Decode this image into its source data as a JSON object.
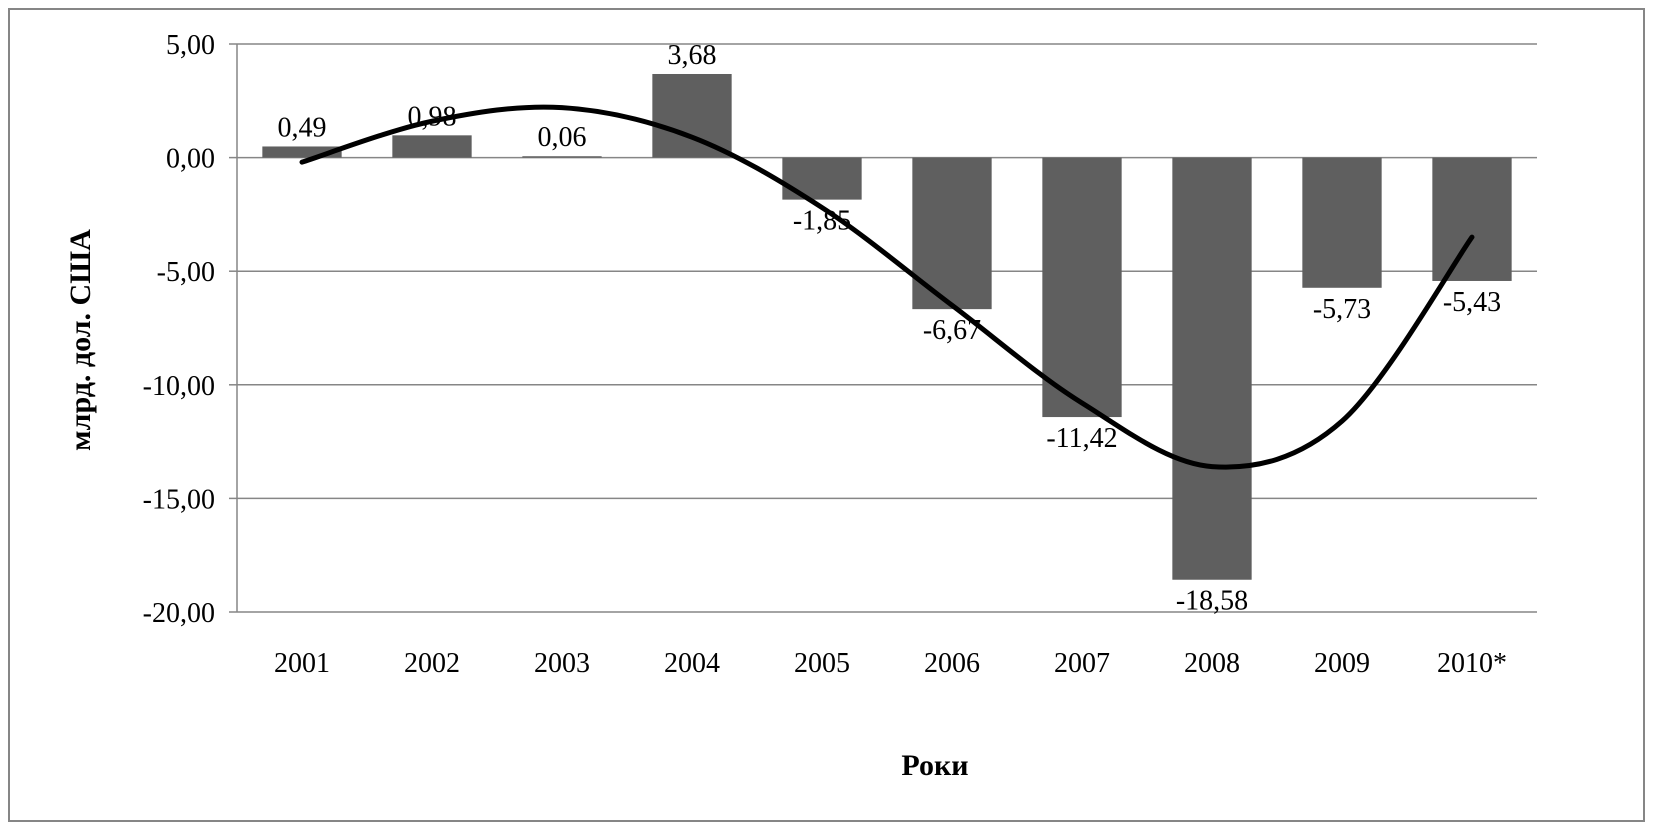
{
  "chart_data": {
    "type": "bar",
    "title": "",
    "xlabel": "Роки",
    "ylabel": "млрд. дол. США",
    "categories": [
      "2001",
      "2002",
      "2003",
      "2004",
      "2005",
      "2006",
      "2007",
      "2008",
      "2009",
      "2010*"
    ],
    "values": [
      0.49,
      0.98,
      0.06,
      3.68,
      -1.85,
      -6.67,
      -11.42,
      -18.58,
      -5.73,
      -5.43
    ],
    "value_labels": [
      "0,49",
      "0,98",
      "0,06",
      "3,68",
      "-1,85",
      "-6,67",
      "-11,42",
      "-18,58",
      "-5,73",
      "-5,43"
    ],
    "ylim": [
      -20,
      5
    ],
    "yticks": [
      5,
      0,
      -5,
      -10,
      -15,
      -20
    ],
    "ytick_labels": [
      "5,00",
      "0,00",
      "-5,00",
      "-10,00",
      "-15,00",
      "-20,00"
    ],
    "grid": true,
    "legend": "none",
    "bar_color": "#5f5f5f",
    "trendline": {
      "type": "polynomial",
      "color": "#000000",
      "x": [
        "2001",
        "2002",
        "2003",
        "2004",
        "2005",
        "2006",
        "2007",
        "2008",
        "2009",
        "2010*"
      ],
      "y": [
        -0.2,
        1.6,
        2.2,
        0.9,
        -2.2,
        -6.5,
        -10.8,
        -13.6,
        -11.6,
        -3.5
      ]
    }
  }
}
